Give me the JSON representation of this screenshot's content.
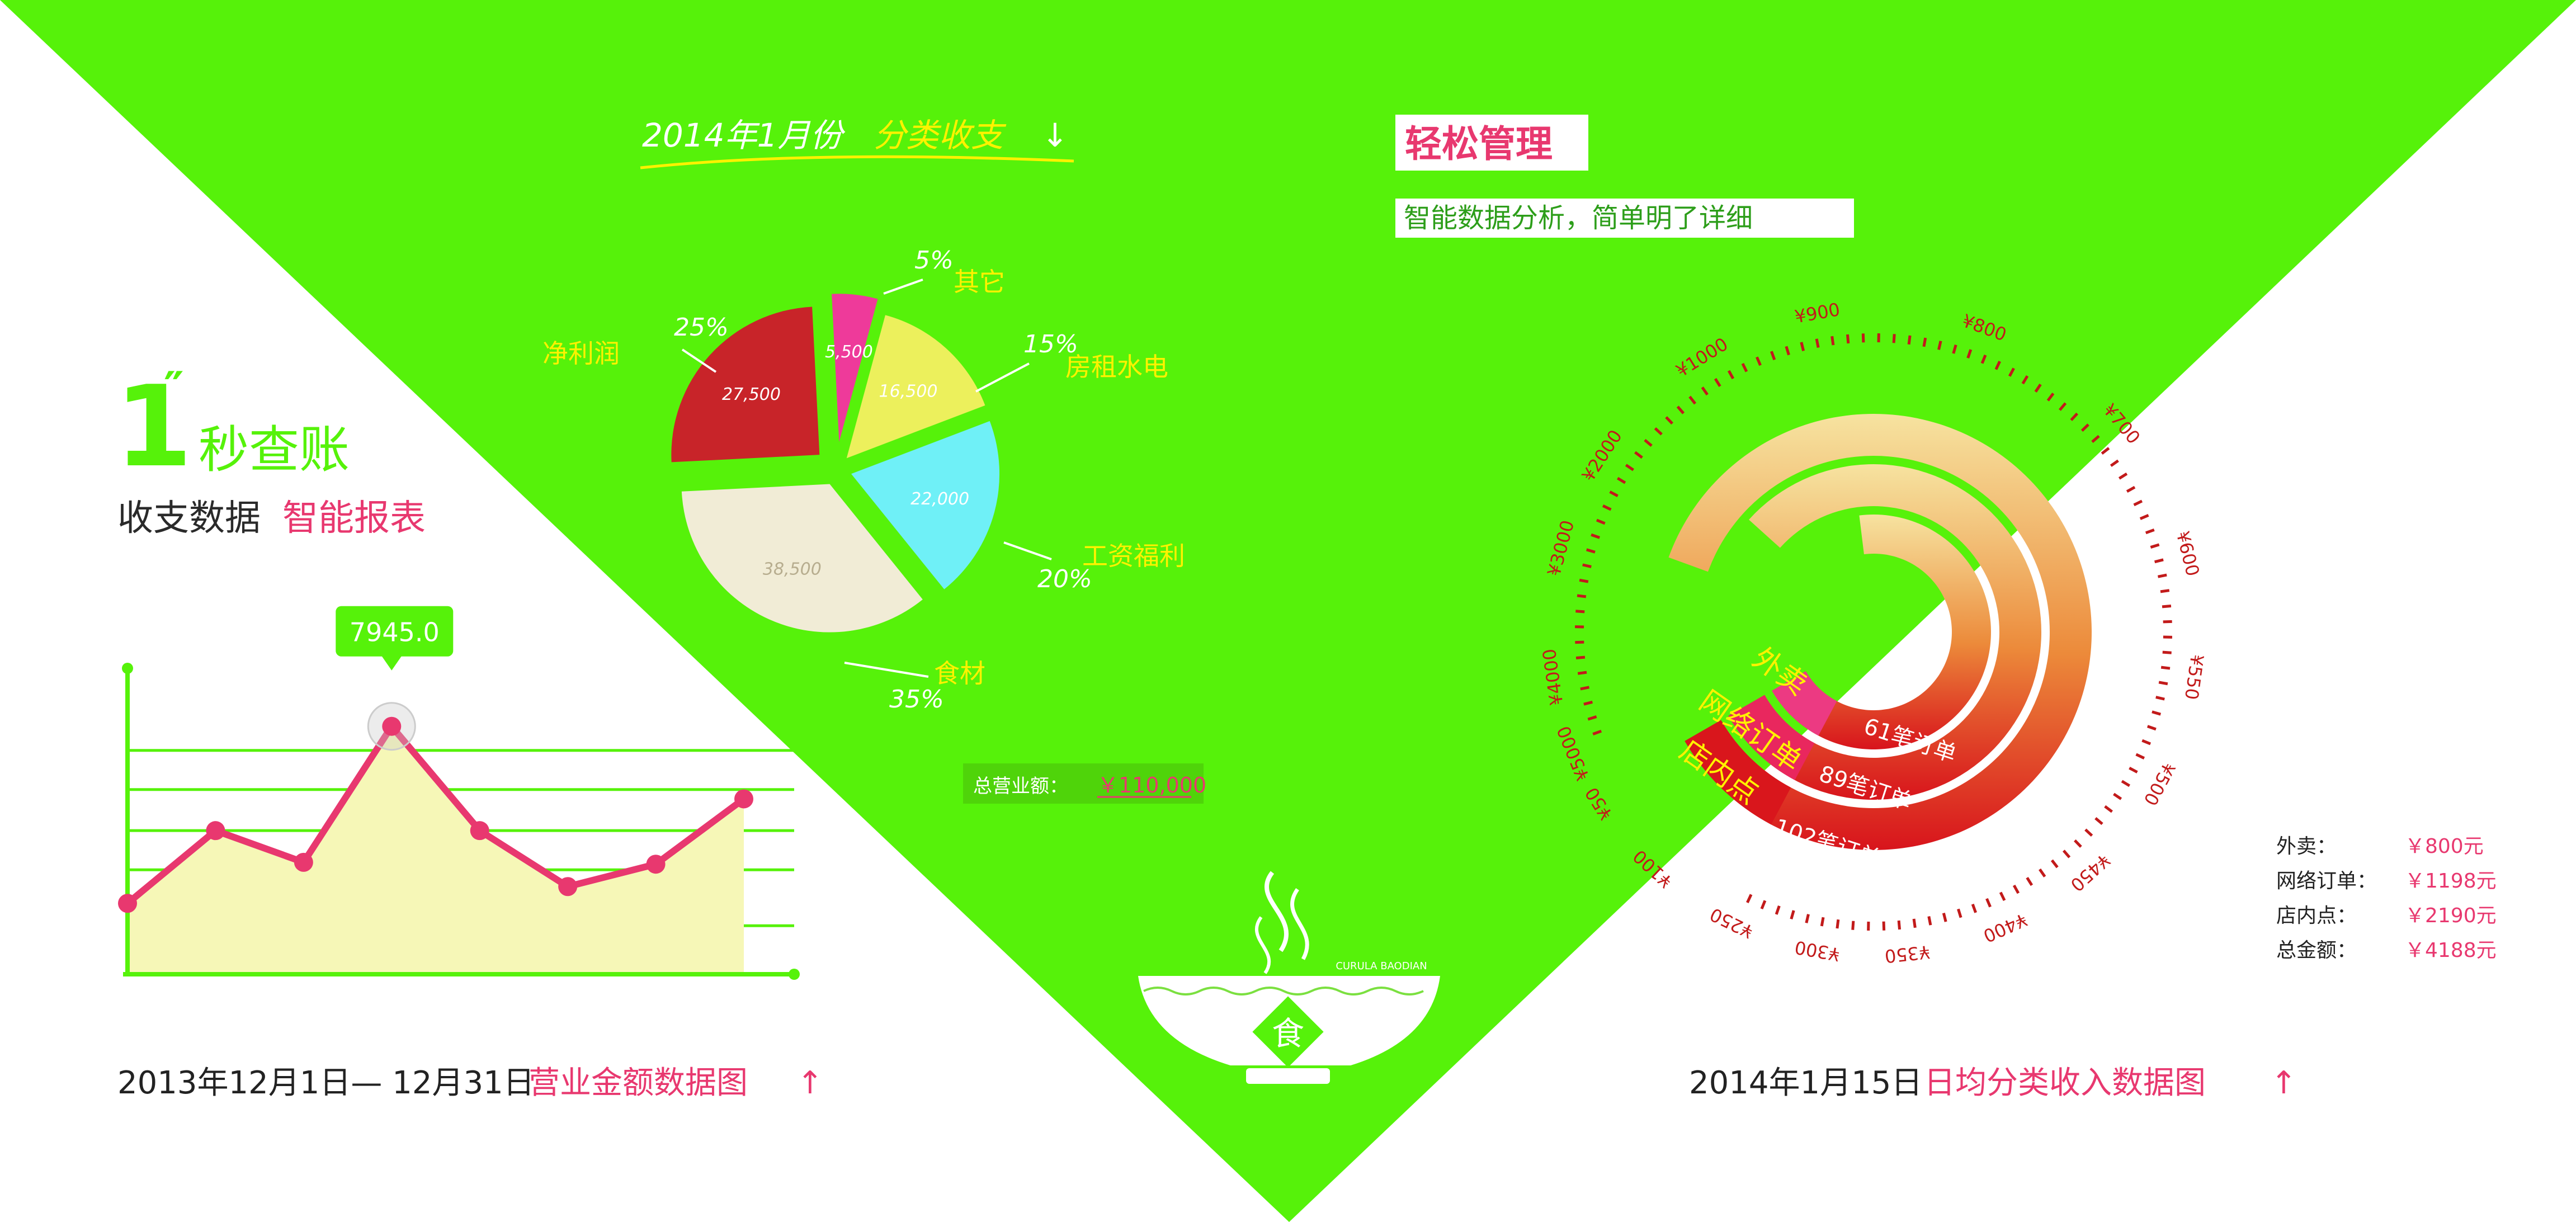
{
  "colors": {
    "green": "#56f20a",
    "pink": "#e8386f",
    "dark": "#222222",
    "white": "#ffffff",
    "gauge_red": "#d9161c",
    "gauge_pink": "#e9275e"
  },
  "left_panel": {
    "big_number": "1",
    "big_number_mark": "″",
    "headline": "秒查账",
    "subtitle_dark": "收支数据",
    "subtitle_pink": "智能报表",
    "caption_dark": "2013年12月1日— 12月31日",
    "caption_pink": "营业金额数据图",
    "caption_arrow": "↑"
  },
  "middle_panel": {
    "title_dark": "2014年1月份",
    "title_yellow": "分类收支",
    "title_arrow": "↓",
    "total_label": "总营业额：",
    "total_value": "￥110,000",
    "bowl_char": "食",
    "bowl_text": "CURULA BAODIAN"
  },
  "right_panel": {
    "badge_title": "轻松管理",
    "badge_subtitle": "智能数据分析，简单明了详细",
    "caption_dark": "2014年1月15日",
    "caption_pink": "日均分类收入数据图",
    "caption_arrow": "↑",
    "legend": [
      {
        "label": "外卖：",
        "value": "￥800元"
      },
      {
        "label": "网络订单：",
        "value": "￥1198元"
      },
      {
        "label": "店内点：",
        "value": "￥2190元"
      },
      {
        "label": "总金额：",
        "value": "￥4188元"
      }
    ]
  },
  "chart_data": [
    {
      "type": "area",
      "title": "营业金额数据图",
      "x": [
        1,
        2,
        3,
        4,
        5,
        6,
        7,
        8
      ],
      "values": [
        3200,
        5150,
        4300,
        7945.0,
        5150,
        3650,
        4250,
        6000
      ],
      "highlight": {
        "index": 3,
        "label": "7945.0"
      },
      "ylim": [
        1300,
        9500
      ],
      "grid": true,
      "colors": {
        "line": "#e8386f",
        "fill": "#f6f7b7",
        "grid": "#56f20a"
      }
    },
    {
      "type": "pie",
      "title": "分类收支",
      "slices": [
        {
          "name": "其它",
          "value": 5500,
          "value_label": "5,500",
          "percent": "5%",
          "color": "#ee3a9a"
        },
        {
          "name": "房租水电",
          "value": 16500,
          "value_label": "16,500",
          "percent": "15%",
          "color": "#ecf05c"
        },
        {
          "name": "工资福利",
          "value": 22000,
          "value_label": "22,000",
          "percent": "20%",
          "color": "#6ff0f7"
        },
        {
          "name": "食材",
          "value": 38500,
          "value_label": "38,500",
          "percent": "35%",
          "color": "#f1ecd6"
        },
        {
          "name": "净利润",
          "value": 27500,
          "value_label": "27,500",
          "percent": "25%",
          "color": "#c82429"
        }
      ],
      "total": "￥110,000"
    },
    {
      "type": "radial-bar",
      "title": "日均分类收入数据图",
      "series": [
        {
          "name": "外卖",
          "value": 800,
          "label": "61笔订单"
        },
        {
          "name": "网络订单",
          "value": 1198,
          "label": "89笔订单"
        },
        {
          "name": "店内点",
          "value": 2190,
          "label": "102笔订单"
        }
      ],
      "scale_ticks": [
        "¥50",
        "¥100",
        "¥250",
        "¥300",
        "¥350",
        "¥400",
        "¥450",
        "¥500",
        "¥550",
        "¥600",
        "¥700",
        "¥800",
        "¥900",
        "¥1000",
        "¥2000",
        "¥3000",
        "¥4000",
        "¥5000"
      ]
    }
  ]
}
